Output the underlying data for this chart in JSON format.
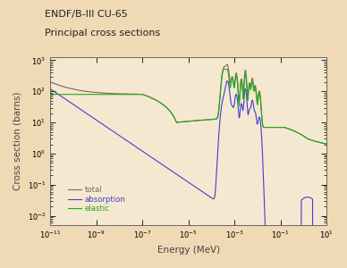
{
  "title_line1": "ENDF/B-III CU-65",
  "title_line2": "Principal cross sections",
  "xlabel": "Energy (MeV)",
  "ylabel": "Cross section (barns)",
  "bg_color": "#f0d9b5",
  "plot_bg_color": "#f5e8d0",
  "total_color": "#7a6a55",
  "absorption_color": "#4040cc",
  "elastic_color": "#22aa22",
  "legend_labels": [
    "total",
    "absorption",
    "elastic"
  ],
  "title_fontsize": 8.0,
  "axis_fontsize": 7.5,
  "tick_fontsize": 6.0
}
